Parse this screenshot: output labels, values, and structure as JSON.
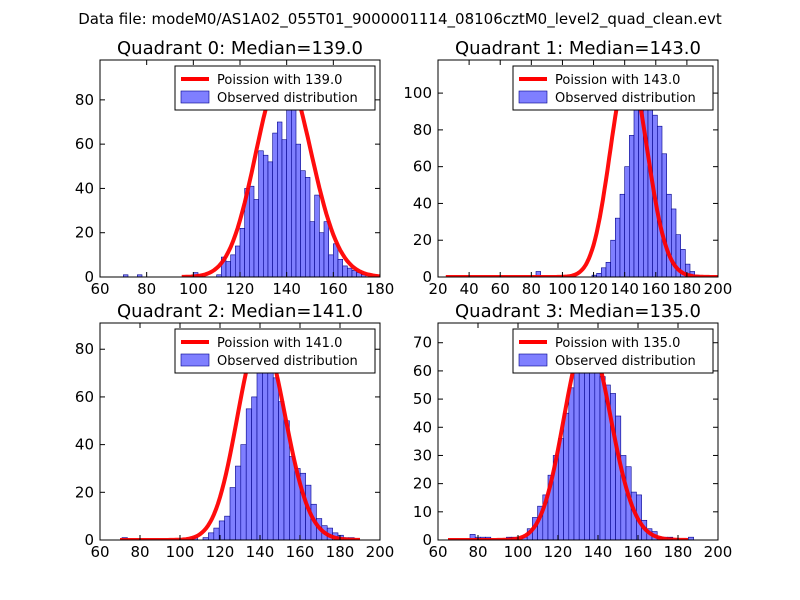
{
  "suptitle": "Data file: modeM0/AS1A02_055T01_9000001114_08106cztM0_level2_quad_clean.evt",
  "colors": {
    "hist_fill": "#7f7fff",
    "hist_edge": "#00008b",
    "curve": "#ff0000"
  },
  "chart_data": [
    {
      "type": "bar",
      "title": "Quadrant 0: Median=139.0",
      "median": 139.0,
      "legend": [
        "Poission with 139.0",
        "Observed distribution"
      ],
      "legend_position": "top-right",
      "xlim": [
        60,
        180
      ],
      "ylim": [
        0,
        98
      ],
      "xticks": [
        60,
        80,
        100,
        120,
        140,
        160,
        180
      ],
      "xtick_labels": [
        "60",
        "80",
        "100",
        "120",
        "140",
        "160",
        "180"
      ],
      "yticks": [
        0,
        20,
        40,
        60,
        80
      ],
      "ytick_labels": [
        "0",
        "20",
        "40",
        "60",
        "80"
      ],
      "bin_start": 70,
      "bin_width": 2,
      "counts": [
        1,
        0,
        0,
        1,
        0,
        0,
        0,
        0,
        0,
        0,
        0,
        0,
        0,
        0,
        0,
        2,
        1,
        0,
        0,
        0,
        1,
        9,
        7,
        10,
        14,
        22,
        40,
        41,
        35,
        57,
        55,
        52,
        65,
        70,
        62,
        85,
        92,
        60,
        48,
        45,
        25,
        37,
        20,
        25,
        10,
        15,
        8,
        5,
        4,
        3,
        2,
        1
      ],
      "poisson_mean": 139.0,
      "poisson_peak": 93,
      "poisson_range": [
        95,
        180
      ]
    },
    {
      "type": "bar",
      "title": "Quadrant 1: Median=143.0",
      "median": 143.0,
      "legend": [
        "Poission with 143.0",
        "Observed distribution"
      ],
      "legend_position": "top-right",
      "xlim": [
        20,
        200
      ],
      "ylim": [
        0,
        118
      ],
      "xticks": [
        20,
        40,
        60,
        80,
        100,
        120,
        140,
        160,
        180,
        200
      ],
      "xtick_labels": [
        "20",
        "40",
        "60",
        "80",
        "100",
        "120",
        "140",
        "160",
        "180",
        "200"
      ],
      "yticks": [
        0,
        20,
        40,
        60,
        80,
        100
      ],
      "ytick_labels": [
        "0",
        "20",
        "40",
        "60",
        "80",
        "100"
      ],
      "bin_start": 83,
      "bin_width": 3,
      "counts": [
        3,
        0,
        0,
        0,
        0,
        0,
        0,
        0,
        0,
        0,
        0,
        0,
        1,
        2,
        5,
        8,
        20,
        32,
        45,
        60,
        77,
        95,
        105,
        97,
        105,
        88,
        82,
        67,
        45,
        37,
        23,
        15,
        7,
        3,
        1
      ],
      "poisson_mean": 143.0,
      "poisson_peak": 113,
      "poisson_range": [
        25,
        200
      ]
    },
    {
      "type": "bar",
      "title": "Quadrant 2: Median=141.0",
      "median": 141.0,
      "legend": [
        "Poission with 141.0",
        "Observed distribution"
      ],
      "legend_position": "top-right",
      "xlim": [
        60,
        200
      ],
      "ylim": [
        0,
        91
      ],
      "xticks": [
        60,
        80,
        100,
        120,
        140,
        160,
        180,
        200
      ],
      "xtick_labels": [
        "60",
        "80",
        "100",
        "120",
        "140",
        "160",
        "180",
        "200"
      ],
      "yticks": [
        0,
        20,
        40,
        60,
        80
      ],
      "ytick_labels": [
        "0",
        "20",
        "40",
        "60",
        "80"
      ],
      "bin_start": 71,
      "bin_width": 2.7,
      "counts": [
        1,
        0,
        0,
        0,
        0,
        0,
        0,
        0,
        0,
        0,
        0,
        0,
        0,
        1,
        0,
        1,
        3,
        5,
        8,
        10,
        22,
        31,
        40,
        55,
        60,
        78,
        85,
        75,
        68,
        58,
        50,
        35,
        30,
        28,
        23,
        15,
        9,
        6,
        5,
        3,
        2,
        1,
        1,
        0,
        0
      ],
      "poisson_mean": 141.0,
      "poisson_peak": 86,
      "poisson_range": [
        70,
        190
      ]
    },
    {
      "type": "bar",
      "title": "Quadrant 3: Median=135.0",
      "median": 135.0,
      "legend": [
        "Poission with 135.0",
        "Observed distribution"
      ],
      "legend_position": "top-right",
      "xlim": [
        60,
        200
      ],
      "ylim": [
        0,
        77
      ],
      "xticks": [
        60,
        80,
        100,
        120,
        140,
        160,
        180,
        200
      ],
      "xtick_labels": [
        "60",
        "80",
        "100",
        "120",
        "140",
        "160",
        "180",
        "200"
      ],
      "yticks": [
        0,
        10,
        20,
        30,
        40,
        50,
        60,
        70
      ],
      "ytick_labels": [
        "0",
        "10",
        "20",
        "30",
        "40",
        "50",
        "60",
        "70"
      ],
      "bin_start": 76,
      "bin_width": 2.6,
      "counts": [
        2,
        1,
        1,
        1,
        0,
        0,
        0,
        1,
        1,
        0,
        1,
        4,
        8,
        12,
        16,
        23,
        30,
        36,
        45,
        54,
        62,
        67,
        65,
        70,
        63,
        58,
        55,
        52,
        44,
        30,
        26,
        17,
        16,
        7,
        4,
        3,
        1,
        1,
        1,
        0,
        0,
        0,
        1
      ],
      "poisson_mean": 135.0,
      "poisson_peak": 72,
      "poisson_range": [
        65,
        185
      ]
    }
  ]
}
